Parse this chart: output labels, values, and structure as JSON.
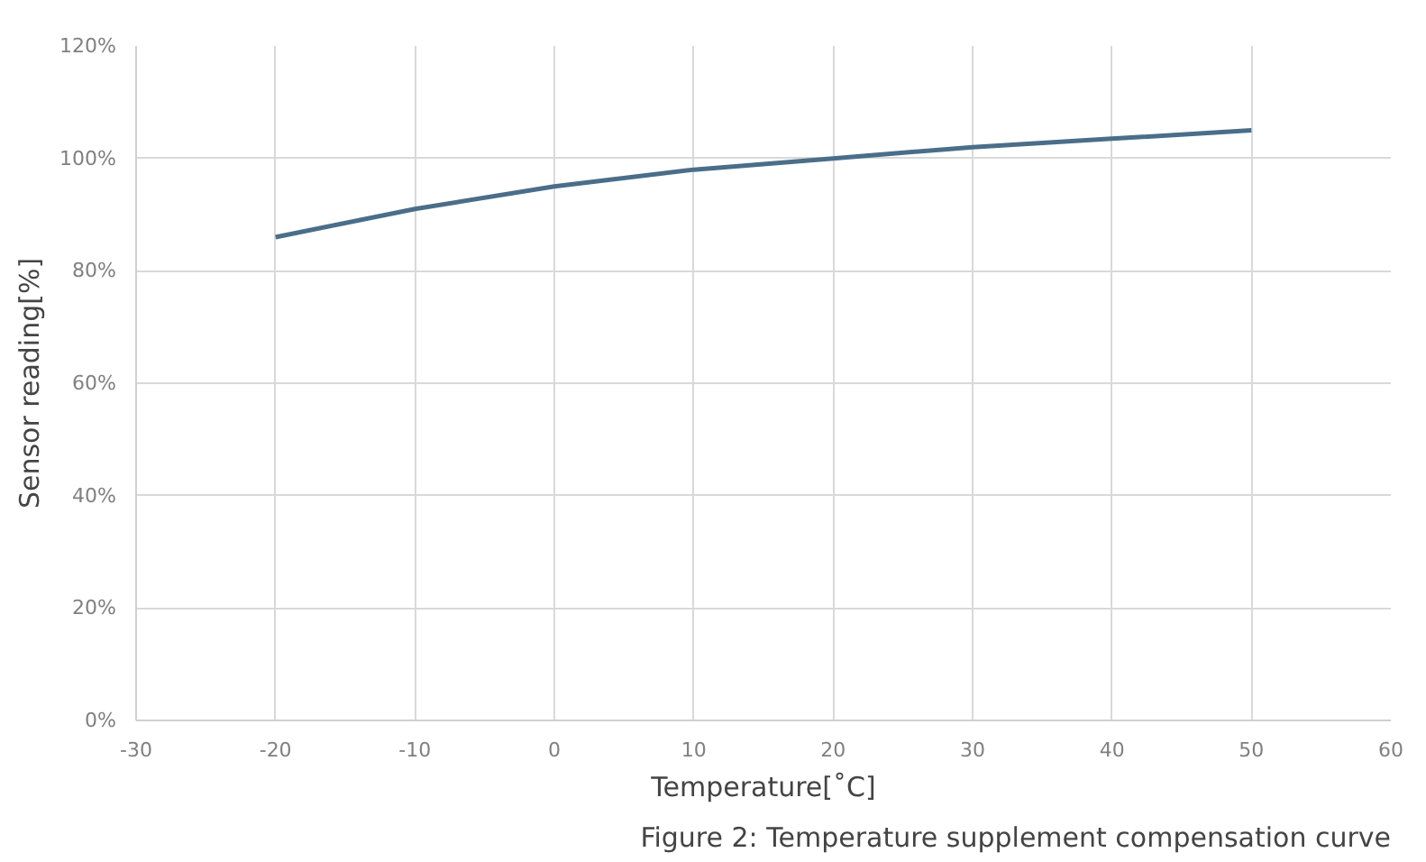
{
  "chart_data": {
    "type": "line",
    "x": [
      -20,
      -10,
      0,
      10,
      20,
      30,
      40,
      50
    ],
    "series": [
      {
        "color": "#4a6e8a",
        "values": [
          86,
          91,
          95,
          98,
          100,
          102,
          103.5,
          105
        ]
      }
    ],
    "xlabel": "Temperature[˚C]",
    "ylabel": "Sensor reading[%]",
    "annotations": [
      "Figure 2: Temperature supplement compensation curve"
    ],
    "xlim": [
      -30,
      60
    ],
    "xticks": [
      -30,
      -20,
      -10,
      0,
      10,
      20,
      30,
      40,
      50,
      60
    ],
    "ylim": [
      0,
      120
    ],
    "yticks": [
      {
        "value": 0,
        "label": "0%"
      },
      {
        "value": 20,
        "label": "20%"
      },
      {
        "value": 40,
        "label": "40%"
      },
      {
        "value": 60,
        "label": "60%"
      },
      {
        "value": 80,
        "label": "80%"
      },
      {
        "value": 100,
        "label": "100%"
      },
      {
        "value": 120,
        "label": "120%"
      }
    ],
    "grid": true
  }
}
